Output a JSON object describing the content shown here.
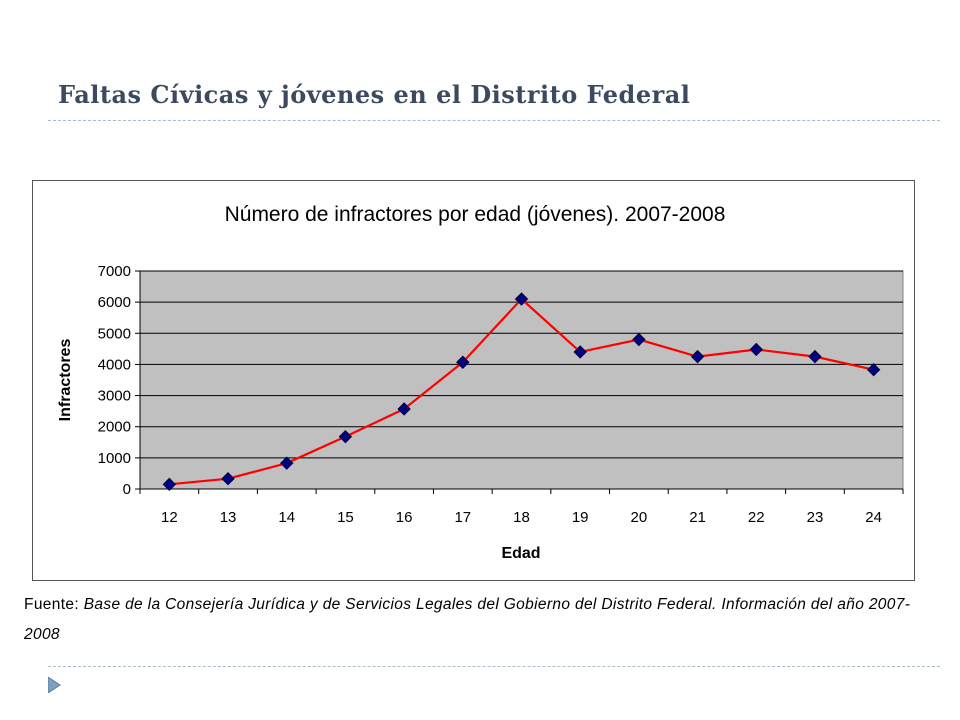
{
  "slide": {
    "title": "Faltas Cívicas y jóvenes en el Distrito Federal",
    "source_label": "Fuente:",
    "source_text": "Base de la Consejería Jurídica y de Servicios Legales del Gobierno del Distrito Federal. Información del año 2007-2008"
  },
  "colors": {
    "title": "#3b4a5f",
    "plot_background": "#c0c0c0",
    "line": "#ff0000",
    "marker": "#000080",
    "divider": "#a9bccd",
    "bullet": "#7f9fbf"
  },
  "chart_data": {
    "type": "line",
    "title": "Número de infractores por edad (jóvenes). 2007-2008",
    "xlabel": "Edad",
    "ylabel": "Infractores",
    "categories": [
      "12",
      "13",
      "14",
      "15",
      "16",
      "17",
      "18",
      "19",
      "20",
      "21",
      "22",
      "23",
      "24"
    ],
    "series": [
      {
        "values": [
          150,
          330,
          830,
          1680,
          2570,
          4070,
          6100,
          4400,
          4800,
          4250,
          4480,
          4250,
          3830
        ]
      }
    ],
    "ylim": [
      0,
      7000
    ],
    "yticks": [
      0,
      1000,
      2000,
      3000,
      4000,
      5000,
      6000,
      7000
    ],
    "grid": true,
    "legend": "none"
  }
}
